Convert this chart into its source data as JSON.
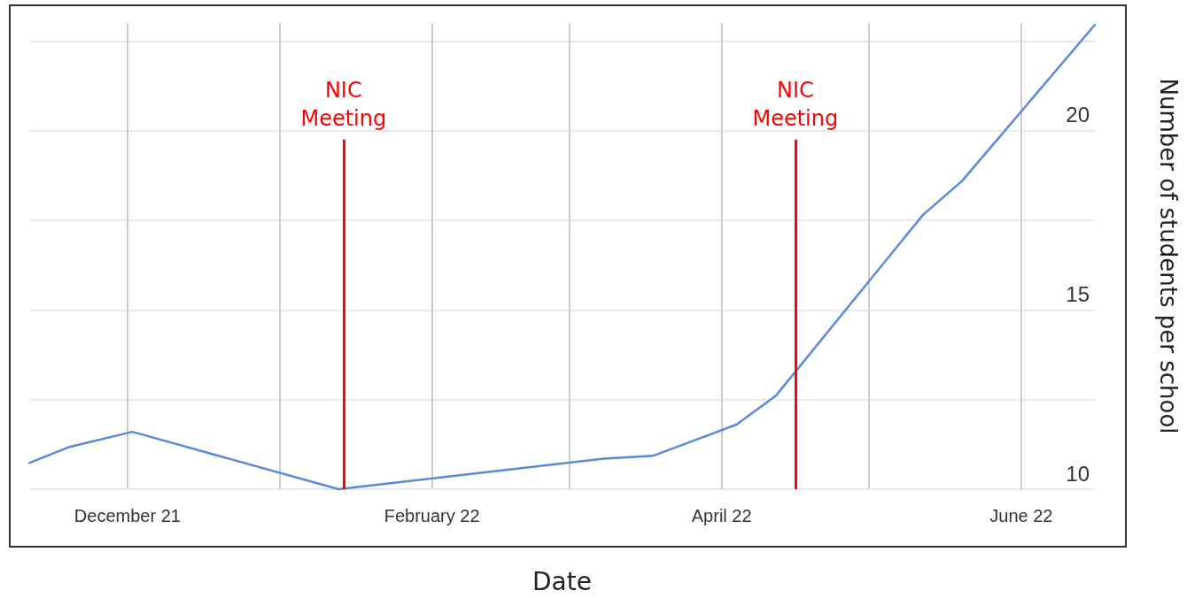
{
  "chart_data": {
    "type": "line",
    "xlabel": "Date",
    "ylabel": "Number of students per school",
    "x": [
      "2021-11-11",
      "2021-11-19",
      "2021-12-02",
      "2022-01-13",
      "2022-03-08",
      "2022-03-18",
      "2022-04-04",
      "2022-04-12",
      "2022-05-12",
      "2022-05-20",
      "2022-06-16"
    ],
    "series": [
      {
        "color": "#5b87dc",
        "values": [
          10.73,
          11.17,
          11.6,
          10.0,
          10.85,
          10.93,
          11.8,
          12.6,
          17.65,
          18.6,
          22.95
        ]
      }
    ],
    "xlim": [
      "2021-11-11",
      "2022-06-16"
    ],
    "xticks": [
      {
        "value": "2021-12-01",
        "label": "December 21"
      },
      {
        "value": "2022-01-01",
        "label": null
      },
      {
        "value": "2022-02-01",
        "label": "February 22"
      },
      {
        "value": "2022-03-01",
        "label": null
      },
      {
        "value": "2022-04-01",
        "label": "April 22"
      },
      {
        "value": "2022-05-01",
        "label": null
      },
      {
        "value": "2022-06-01",
        "label": "June 22"
      }
    ],
    "ylim": [
      10,
      23
    ],
    "yticks": [
      10,
      {
        "value": 12.5,
        "label": null
      },
      15,
      {
        "value": 17.5,
        "label": null
      },
      20,
      {
        "value": 22.5,
        "label": null
      }
    ],
    "ref_lines": [
      {
        "axis": "x",
        "value": "2022-01-14",
        "label": "NIC\nMeeting",
        "color": "#ff0000"
      },
      {
        "axis": "x",
        "value": "2022-04-16",
        "label": "NIC\nMeeting",
        "color": "#ff0000"
      }
    ],
    "grid": true,
    "marker": "none",
    "line_style": "solid"
  }
}
